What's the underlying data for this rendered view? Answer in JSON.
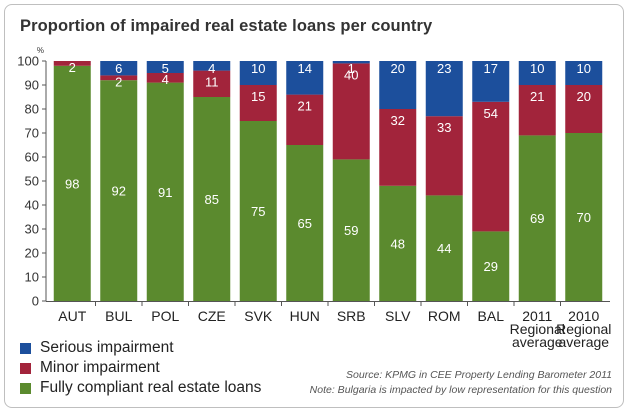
{
  "chart_data": {
    "type": "bar",
    "stacked": true,
    "title": "Proportion of impaired real estate loans per country",
    "y_unit_label": "%",
    "ylim": [
      0,
      100
    ],
    "y_ticks": [
      0,
      10,
      20,
      30,
      40,
      50,
      60,
      70,
      80,
      90,
      100
    ],
    "grid": false,
    "legend_position": "bottom-left",
    "categories": [
      [
        "AUT"
      ],
      [
        "BUL"
      ],
      [
        "POL"
      ],
      [
        "CZE"
      ],
      [
        "SVK"
      ],
      [
        "HUN"
      ],
      [
        "SRB"
      ],
      [
        "SLV"
      ],
      [
        "ROM"
      ],
      [
        "BAL"
      ],
      [
        "2011",
        "Regional",
        "average"
      ],
      [
        "2010",
        "Regional",
        "average"
      ]
    ],
    "series": [
      {
        "name": "Fully compliant real estate loans",
        "color": "#5b8a2e",
        "values": [
          98,
          92,
          91,
          85,
          75,
          65,
          59,
          48,
          44,
          29,
          69,
          70
        ]
      },
      {
        "name": "Minor impairment",
        "color": "#a2243b",
        "values": [
          2,
          2,
          4,
          11,
          15,
          21,
          40,
          32,
          33,
          54,
          21,
          20
        ]
      },
      {
        "name": "Serious impairment",
        "color": "#1c4f9c",
        "values": [
          0,
          6,
          5,
          4,
          10,
          14,
          1,
          20,
          23,
          17,
          10,
          10
        ]
      }
    ]
  },
  "legend": {
    "items": [
      {
        "label": "Serious impairment",
        "color": "#1c4f9c"
      },
      {
        "label": "Minor impairment",
        "color": "#a2243b"
      },
      {
        "label": "Fully compliant real estate loans",
        "color": "#5b8a2e"
      }
    ]
  },
  "notes": {
    "source": "Source: KPMG in CEE Property Lending Barometer 2011",
    "note": "Note: Bulgaria is impacted by low representation for this question"
  }
}
